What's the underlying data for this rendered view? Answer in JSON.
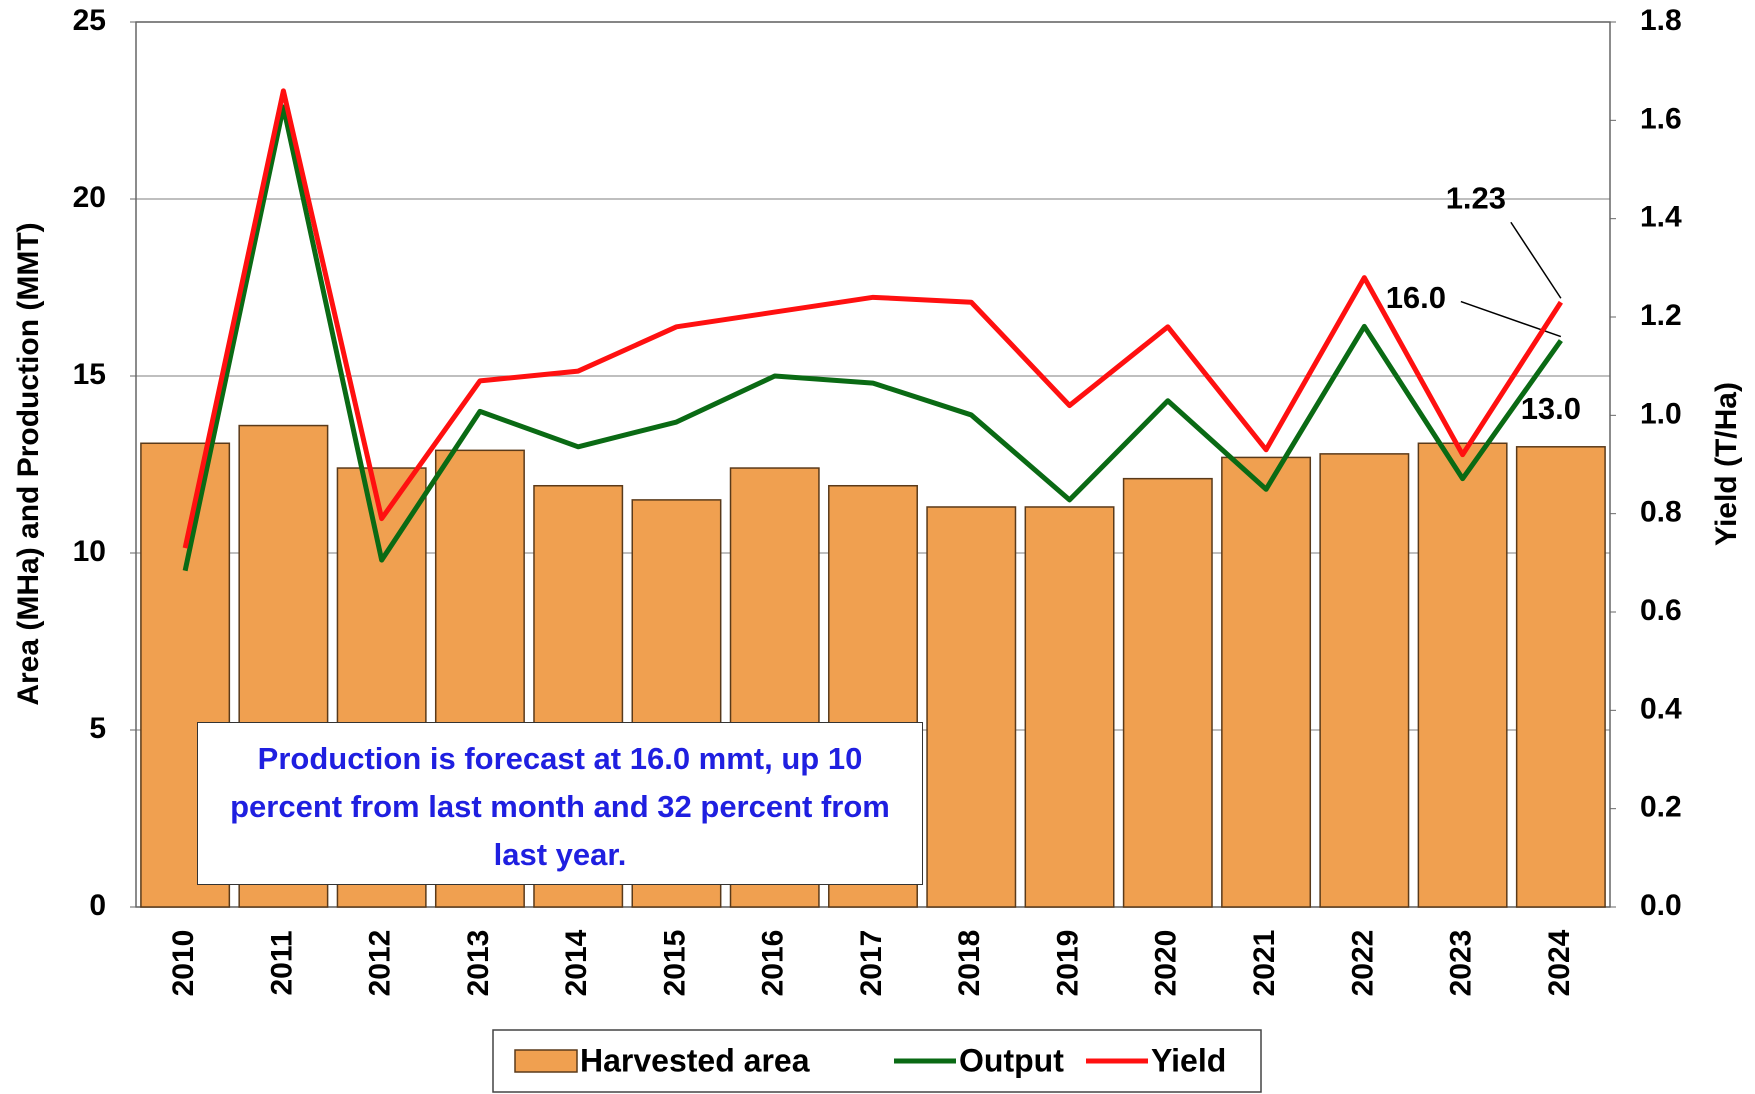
{
  "chart_data": {
    "type": "bar",
    "categories": [
      "2010",
      "2011",
      "2012",
      "2013",
      "2014",
      "2015",
      "2016",
      "2017",
      "2018",
      "2019",
      "2020",
      "2021",
      "2022",
      "2023",
      "2024"
    ],
    "series": [
      {
        "name": "Harvested area",
        "type": "bar",
        "color": "#f0a050",
        "values": [
          13.1,
          13.6,
          12.4,
          12.9,
          11.9,
          11.5,
          12.4,
          11.9,
          11.3,
          11.3,
          12.1,
          12.7,
          12.8,
          13.1,
          13.0
        ],
        "value_labels": [
          null,
          null,
          null,
          null,
          null,
          null,
          null,
          null,
          null,
          null,
          null,
          null,
          null,
          null,
          "13.0"
        ]
      },
      {
        "name": "Output",
        "type": "line",
        "color": "#0a6a14",
        "values": [
          9.5,
          22.6,
          9.8,
          14.0,
          13.0,
          13.7,
          15.0,
          14.8,
          13.9,
          11.5,
          14.3,
          11.8,
          16.4,
          12.1,
          16.0
        ],
        "value_labels": [
          null,
          null,
          null,
          null,
          null,
          null,
          null,
          null,
          null,
          null,
          null,
          null,
          null,
          null,
          "16.0"
        ]
      },
      {
        "name": "Yield",
        "type": "line",
        "axis": "y2",
        "color": "#ff1010",
        "values": [
          0.73,
          1.66,
          0.79,
          1.07,
          1.09,
          1.18,
          1.21,
          1.24,
          1.23,
          1.02,
          1.18,
          0.93,
          1.28,
          0.92,
          1.23
        ],
        "value_labels": [
          null,
          null,
          null,
          null,
          null,
          null,
          null,
          null,
          null,
          null,
          null,
          null,
          null,
          null,
          "1.23"
        ]
      }
    ],
    "ylabel": "Area (MHa) and Production  (MMT)",
    "y2label": "Yield (T/Ha)",
    "ylim": [
      0,
      25
    ],
    "yticks": [
      0,
      5,
      10,
      15,
      20,
      25
    ],
    "y2lim": [
      0,
      1.8
    ],
    "y2ticks": [
      {
        "value": 0,
        "label": "0.0"
      },
      {
        "value": 0.2,
        "label": "0.2"
      },
      {
        "value": 0.4,
        "label": "0.4"
      },
      {
        "value": 0.6,
        "label": "0.6"
      },
      {
        "value": 0.8,
        "label": "0.8"
      },
      {
        "value": 1.0,
        "label": "1.0"
      },
      {
        "value": 1.2,
        "label": "1.2"
      },
      {
        "value": 1.4,
        "label": "1.4"
      },
      {
        "value": 1.6,
        "label": "1.6"
      },
      {
        "value": 1.8,
        "label": "1.8"
      }
    ],
    "grid": true,
    "legend": "bottom",
    "annotation": "Production is forecast at 16.0 mmt, up 10 percent from last month and 32 percent from last year."
  }
}
